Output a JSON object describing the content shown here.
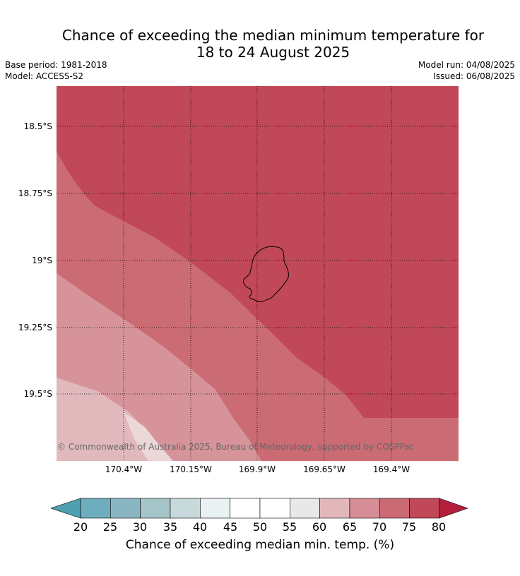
{
  "title_line1": "Chance of exceeding the median minimum temperature for",
  "title_line2": "18 to 24 August 2025",
  "base_period": "Base period: 1981-2018",
  "model": "Model: ACCESS-S2",
  "model_run": "Model run: 04/08/2025",
  "issued": "Issued: 06/08/2025",
  "copyright": "© Commonwealth of Australia 2025, Bureau of Meteorology, supported by COSPPac",
  "map": {
    "lat_labels": [
      "18.5°S",
      "18.75°S",
      "19°S",
      "19.25°S",
      "19.5°S"
    ],
    "lon_labels": [
      "170.4°W",
      "170.15°W",
      "169.9°W",
      "169.65°W",
      "169.4°W"
    ],
    "colors": {
      "band_75_80": "#c14858",
      "band_70_75": "#cb6b73",
      "band_65_70": "#d6939a",
      "band_60_65": "#e1b9bd",
      "coast": "#000000"
    }
  },
  "colorbar": {
    "ticks": [
      "20",
      "25",
      "30",
      "35",
      "40",
      "45",
      "50",
      "55",
      "60",
      "65",
      "70",
      "75",
      "80"
    ],
    "colors": [
      "#4fa0b1",
      "#6dadbd",
      "#8ab6c2",
      "#a6c5c9",
      "#c8d9dc",
      "#e9f1f3",
      "#ffffff",
      "#ffffff",
      "#e9e8e9",
      "#e1b7bb",
      "#d68d96",
      "#cb6a74",
      "#c14858",
      "#b51f3d"
    ],
    "label": "Chance of exceeding median min. temp. (%)"
  }
}
